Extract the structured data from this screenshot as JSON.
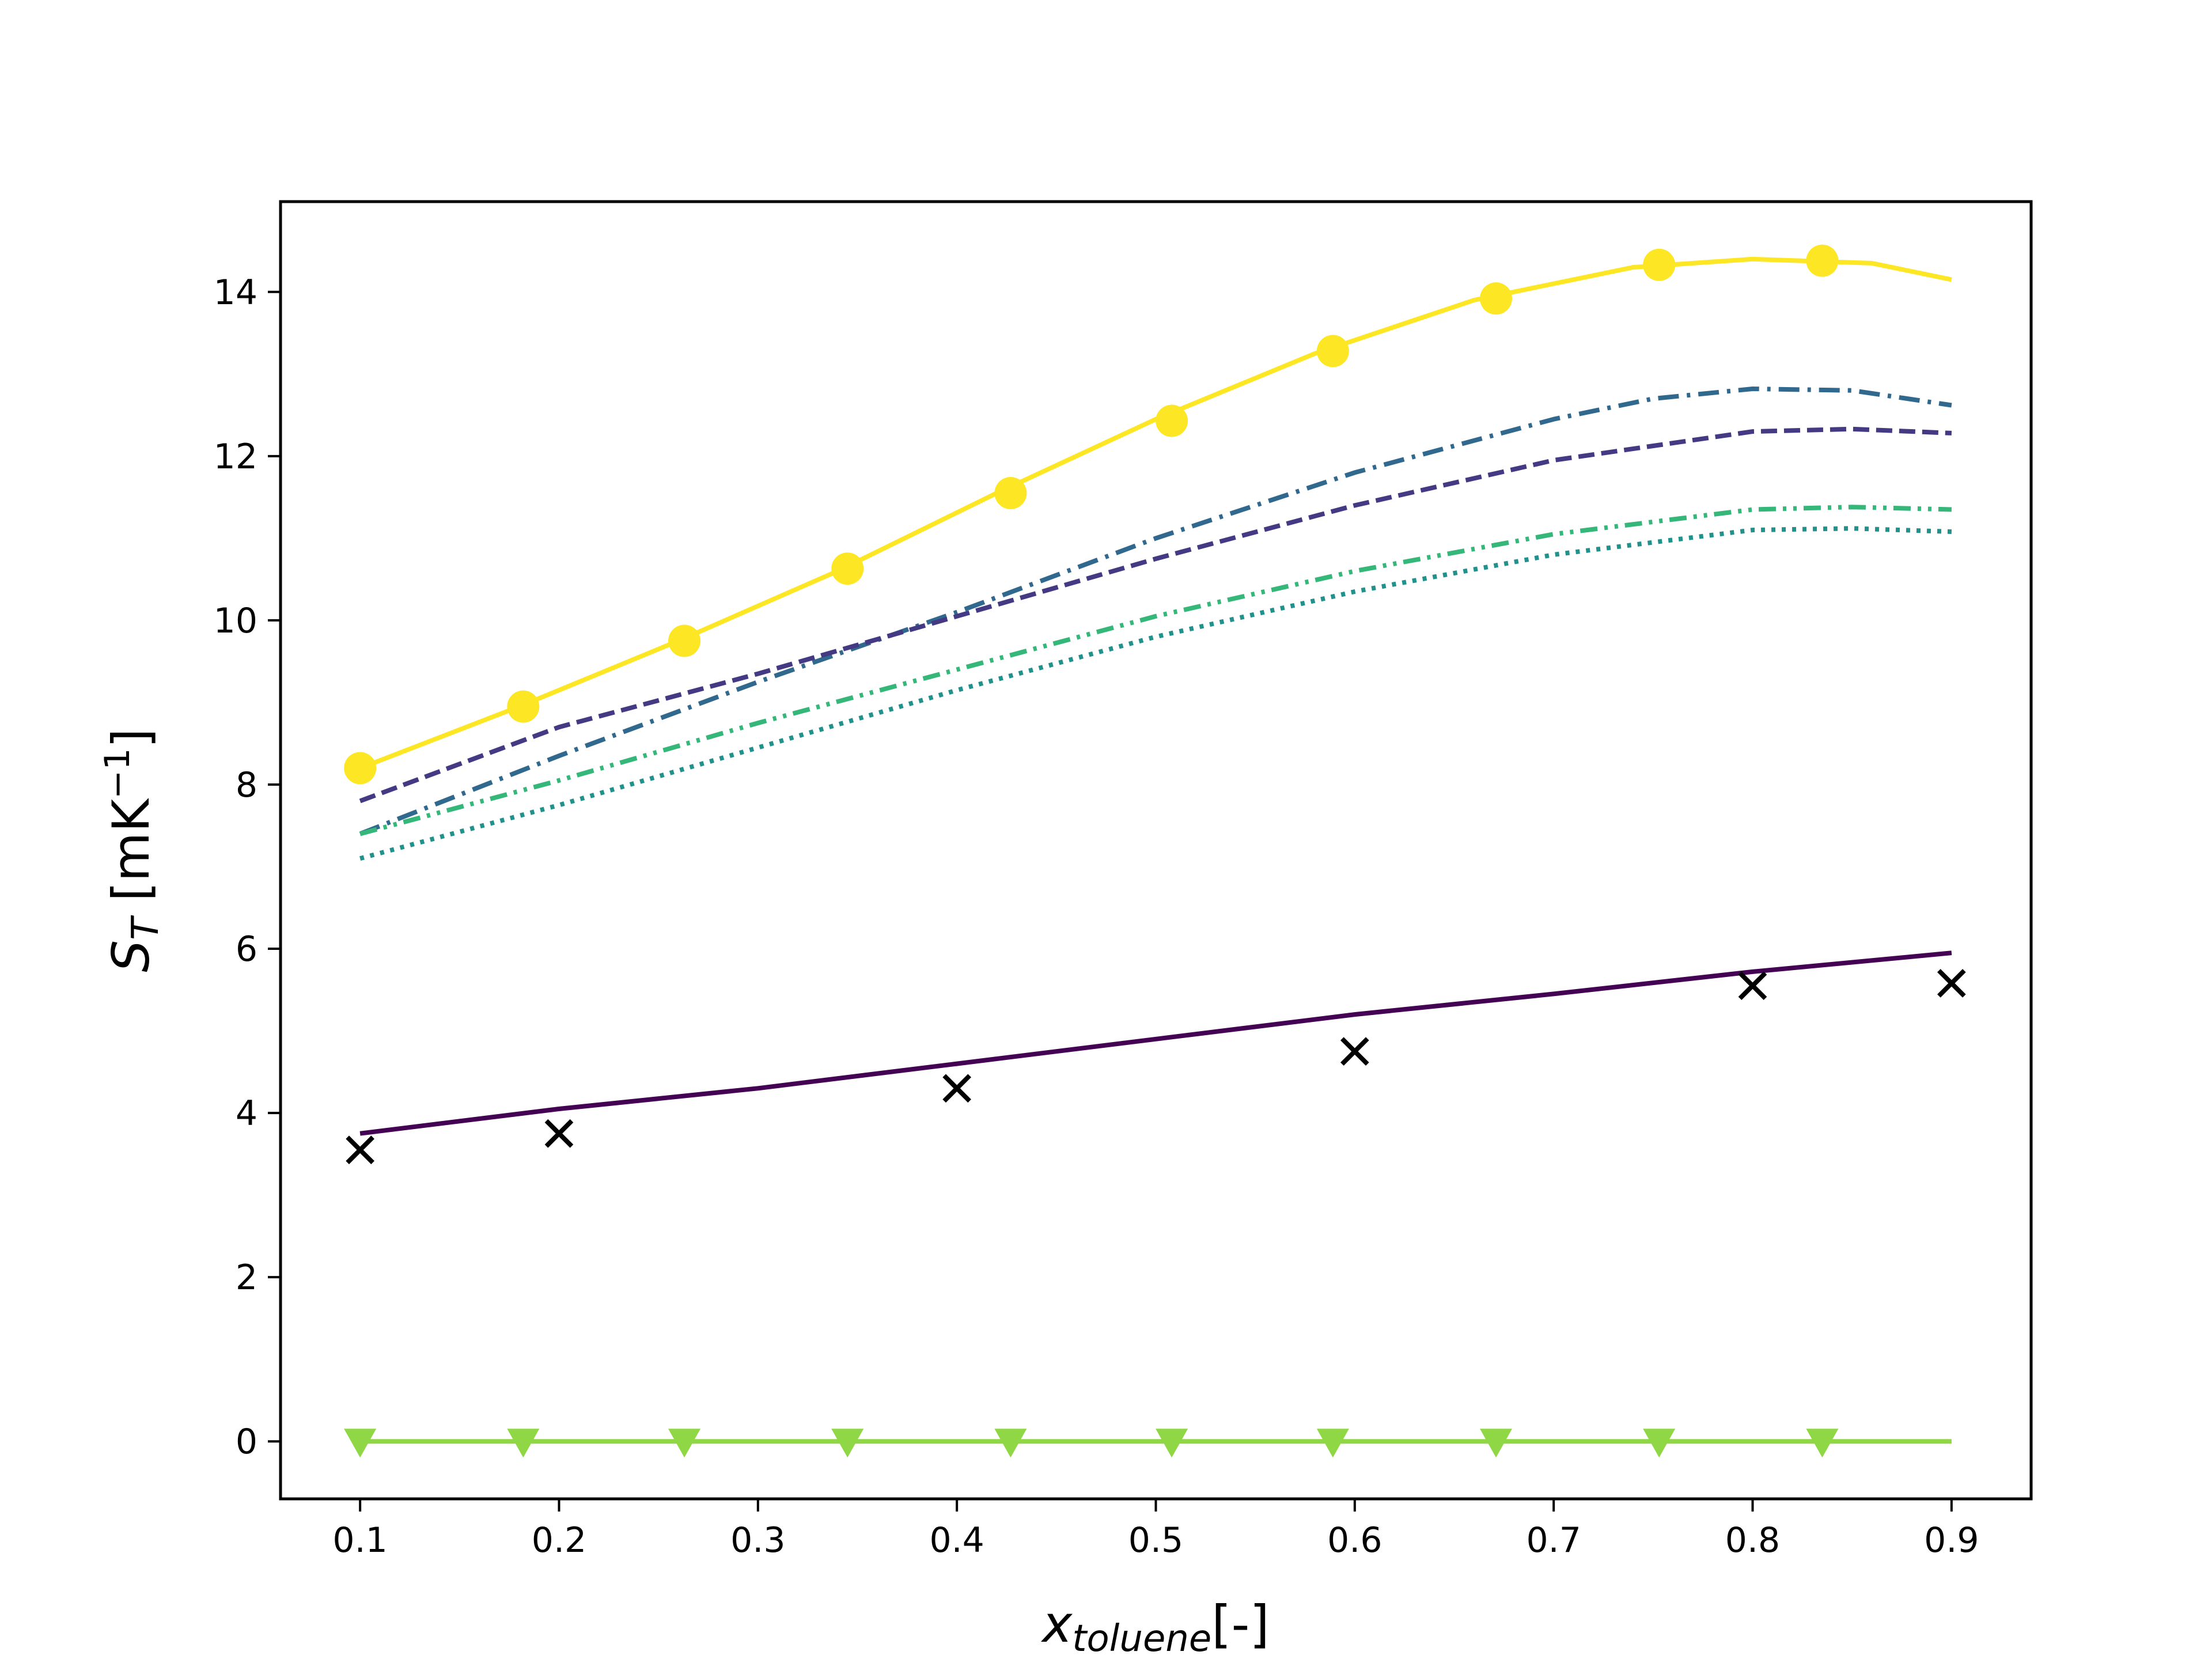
{
  "chart_data": {
    "type": "line",
    "xlabel": {
      "main": "x",
      "sub": "toluene",
      "suffix": "[-]"
    },
    "ylabel": {
      "main": "S",
      "sub": "T",
      "pre_unit": " [mK",
      "sup": "−1",
      "post_unit": "]"
    },
    "xlim": [
      0.06,
      0.94
    ],
    "ylim": [
      -0.7,
      15.1
    ],
    "xticks": [
      0.1,
      0.2,
      0.3,
      0.4,
      0.5,
      0.6,
      0.7,
      0.8,
      0.9
    ],
    "xtick_labels": [
      "0.1",
      "0.2",
      "0.3",
      "0.4",
      "0.5",
      "0.6",
      "0.7",
      "0.8",
      "0.9"
    ],
    "yticks": [
      0,
      2,
      4,
      6,
      8,
      10,
      12,
      14
    ],
    "ytick_labels": [
      "0",
      "2",
      "4",
      "6",
      "8",
      "10",
      "12",
      "14"
    ],
    "grid": false,
    "legend": "none",
    "series": [
      {
        "style": "solid",
        "marker": "circle",
        "color": "#fde725",
        "x": [
          0.1,
          0.18,
          0.26,
          0.34,
          0.42,
          0.5,
          0.58,
          0.66,
          0.74,
          0.8,
          0.86,
          0.9
        ],
        "y": [
          8.2,
          8.95,
          9.75,
          10.6,
          11.55,
          12.45,
          13.25,
          13.9,
          14.3,
          14.4,
          14.35,
          14.15
        ],
        "marker_x": [
          0.1,
          0.182,
          0.263,
          0.345,
          0.427,
          0.508,
          0.589,
          0.671,
          0.753,
          0.835
        ],
        "marker_y": [
          8.2,
          8.95,
          9.75,
          10.63,
          11.55,
          12.43,
          13.28,
          13.92,
          14.33,
          14.38
        ]
      },
      {
        "style": "dashdot",
        "color": "#31688e",
        "x": [
          0.1,
          0.2,
          0.3,
          0.4,
          0.5,
          0.6,
          0.7,
          0.75,
          0.8,
          0.85,
          0.9
        ],
        "y": [
          7.4,
          8.35,
          9.25,
          10.1,
          11.0,
          11.8,
          12.45,
          12.7,
          12.82,
          12.8,
          12.62
        ]
      },
      {
        "style": "dashed",
        "color": "#443983",
        "x": [
          0.1,
          0.2,
          0.3,
          0.4,
          0.5,
          0.6,
          0.7,
          0.8,
          0.85,
          0.9
        ],
        "y": [
          7.8,
          8.7,
          9.35,
          10.05,
          10.75,
          11.4,
          11.95,
          12.3,
          12.33,
          12.28
        ]
      },
      {
        "style": "dashdotdot",
        "color": "#35b779",
        "x": [
          0.1,
          0.2,
          0.3,
          0.4,
          0.5,
          0.6,
          0.7,
          0.8,
          0.85,
          0.9
        ],
        "y": [
          7.4,
          8.05,
          8.75,
          9.4,
          10.05,
          10.6,
          11.05,
          11.35,
          11.38,
          11.35
        ]
      },
      {
        "style": "dotted",
        "color": "#21918c",
        "x": [
          0.1,
          0.2,
          0.3,
          0.4,
          0.5,
          0.6,
          0.7,
          0.8,
          0.85,
          0.9
        ],
        "y": [
          7.1,
          7.75,
          8.45,
          9.15,
          9.8,
          10.35,
          10.8,
          11.1,
          11.12,
          11.08
        ]
      },
      {
        "style": "solid",
        "color": "#440154",
        "x": [
          0.1,
          0.2,
          0.3,
          0.4,
          0.5,
          0.6,
          0.7,
          0.8,
          0.9
        ],
        "y": [
          3.75,
          4.05,
          4.3,
          4.6,
          4.9,
          5.2,
          5.45,
          5.72,
          5.95
        ]
      },
      {
        "style": "none",
        "marker": "x",
        "color": "#000000",
        "x": [
          0.1,
          0.2,
          0.4,
          0.6,
          0.8,
          0.9
        ],
        "y": [
          3.55,
          3.75,
          4.3,
          4.75,
          5.55,
          5.58
        ]
      },
      {
        "style": "solid",
        "marker": "triangle-down",
        "color": "#8fd744",
        "x": [
          0.1,
          0.9
        ],
        "y": [
          0.0,
          0.0
        ],
        "marker_x": [
          0.1,
          0.182,
          0.263,
          0.345,
          0.427,
          0.508,
          0.589,
          0.671,
          0.753,
          0.835
        ],
        "marker_y": [
          0,
          0,
          0,
          0,
          0,
          0,
          0,
          0,
          0,
          0
        ]
      }
    ]
  }
}
